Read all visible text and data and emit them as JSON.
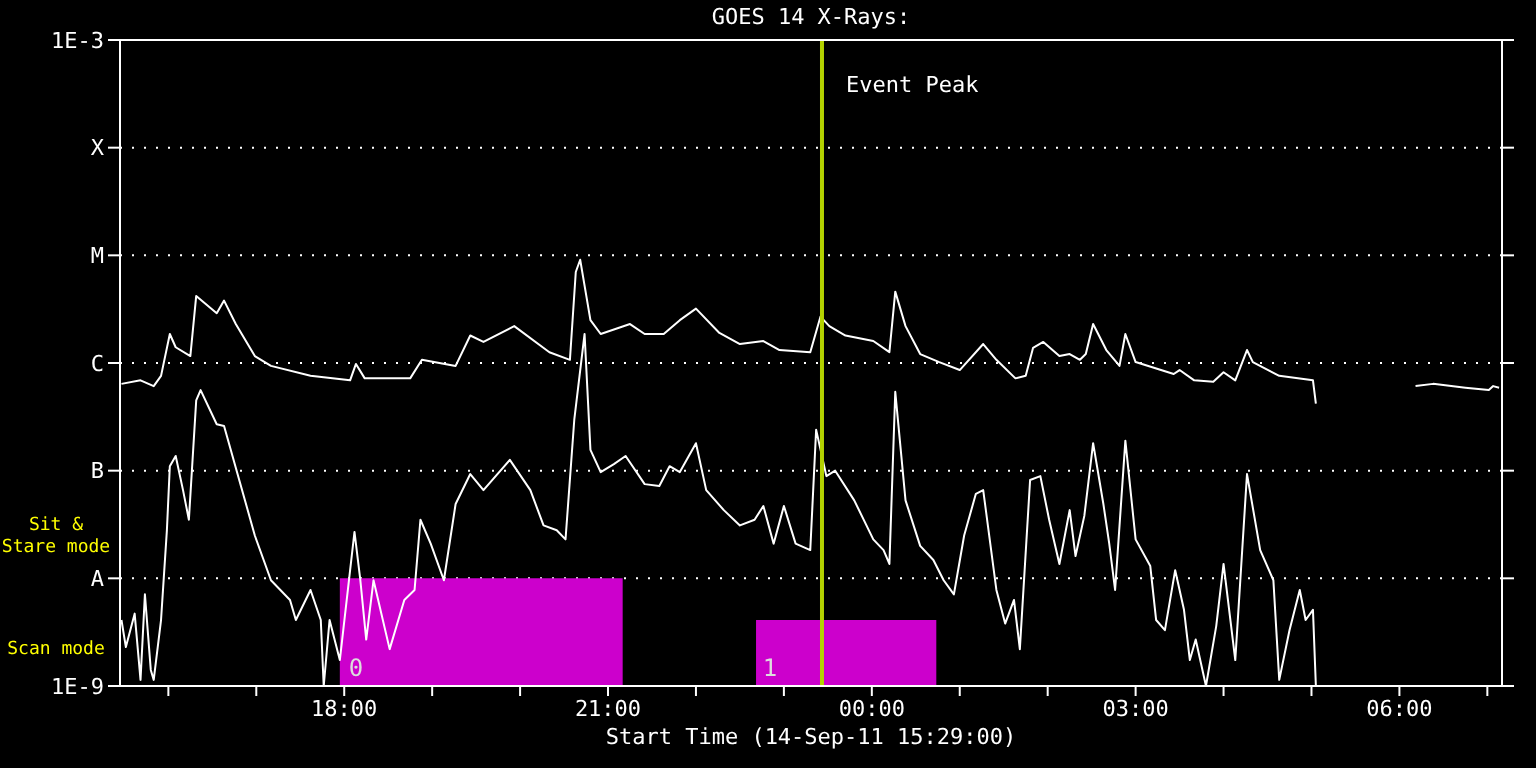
{
  "chart_data": {
    "type": "line",
    "title": "GOES 14 X-Rays:",
    "xlabel": "Start Time (14-Sep-11 15:29:00)",
    "log": "y",
    "grid": "y",
    "xlim": [
      "--09-14T15:27",
      "--09-15T07:10"
    ],
    "xticks": [
      {
        "value": "--09-14T16:00",
        "label": null
      },
      {
        "value": "--09-14T17:00",
        "label": null
      },
      {
        "value": "--09-14T18:00",
        "label": "18:00"
      },
      {
        "value": "--09-14T19:00",
        "label": null
      },
      {
        "value": "--09-14T20:00",
        "label": null
      },
      {
        "value": "--09-14T21:00",
        "label": "21:00"
      },
      {
        "value": "--09-14T22:00",
        "label": null
      },
      {
        "value": "--09-14T23:00",
        "label": null
      },
      {
        "value": "--09-15T00:00",
        "label": "00:00"
      },
      {
        "value": "--09-15T01:00",
        "label": null
      },
      {
        "value": "--09-15T02:00",
        "label": null
      },
      {
        "value": "--09-15T03:00",
        "label": "03:00"
      },
      {
        "value": "--09-15T04:00",
        "label": null
      },
      {
        "value": "--09-15T05:00",
        "label": null
      },
      {
        "value": "--09-15T06:00",
        "label": "06:00"
      },
      {
        "value": "--09-15T07:00",
        "label": null
      }
    ],
    "ylim": [
      1e-09,
      0.001
    ],
    "yticks": [
      {
        "value": 1e-09,
        "label": "1E-9"
      },
      {
        "value": 1e-08,
        "label": "A"
      },
      {
        "value": 1e-07,
        "label": "B"
      },
      {
        "value": 1e-06,
        "label": "C"
      },
      {
        "value": 1e-05,
        "label": "M"
      },
      {
        "value": 0.0001,
        "label": "X"
      },
      {
        "value": 0.001,
        "label": "1E-3"
      }
    ],
    "series": [
      {
        "type": "area",
        "color": "#cc00cc",
        "x": [
          "--09-14T17:57",
          "--09-14T21:10"
        ],
        "values": [
          1e-08,
          1e-08
        ]
      },
      {
        "type": "area",
        "color": "#cc00cc",
        "x": [
          "--09-14T22:41",
          "--09-15T00:44"
        ],
        "values": [
          4.1e-09,
          4.1e-09
        ]
      },
      {
        "color": "#ffffff",
        "x": [
          "--09-14T15:28",
          "--09-14T15:41",
          "--09-14T15:50",
          "--09-14T15:55",
          "--09-14T16:01",
          "--09-14T16:05",
          "--09-14T16:15",
          "--09-14T16:19",
          "--09-14T16:33",
          "--09-14T16:38",
          "--09-14T16:46",
          "--09-14T16:59",
          "--09-14T17:10",
          "--09-14T17:37",
          "--09-14T18:04",
          "--09-14T18:08",
          "--09-14T18:14",
          "--09-14T18:45",
          "--09-14T18:53",
          "--09-14T19:16",
          "--09-14T19:26",
          "--09-14T19:35",
          "--09-14T19:56",
          "--09-14T20:20",
          "--09-14T20:34",
          "--09-14T20:38",
          "--09-14T20:41",
          "--09-14T20:48",
          "--09-14T20:55",
          "--09-14T21:15",
          "--09-14T21:25",
          "--09-14T21:38",
          "--09-14T21:49",
          "--09-14T22:00",
          "--09-14T22:16",
          "--09-14T22:30",
          "--09-14T22:46",
          "--09-14T22:57",
          "--09-14T23:18",
          "--09-14T23:25",
          "--09-14T23:31",
          "--09-14T23:42",
          "--09-15T00:01",
          "--09-15T00:12",
          "--09-15T00:16",
          "--09-15T00:23",
          "--09-15T00:33",
          "--09-15T00:46",
          "--09-15T01:00",
          "--09-15T01:16",
          "--09-15T01:25",
          "--09-15T01:38",
          "--09-15T01:45",
          "--09-15T01:50",
          "--09-15T01:57",
          "--09-15T02:08",
          "--09-15T02:15",
          "--09-15T02:22",
          "--09-15T02:26",
          "--09-15T02:31",
          "--09-15T02:40",
          "--09-15T02:49",
          "--09-15T02:53",
          "--09-15T03:00",
          "--09-15T03:26",
          "--09-15T03:30",
          "--09-15T03:40",
          "--09-15T03:53",
          "--09-15T04:00",
          "--09-15T04:08",
          "--09-15T04:16",
          "--09-15T04:20",
          "--09-15T04:38",
          "--09-15T05:01",
          "--09-15T05:03",
          "--09-15T05:36",
          "--09-15T06:11",
          "--09-15T06:23",
          "--09-15T06:45",
          "--09-15T07:01",
          "--09-15T07:04",
          "--09-15T07:08"
        ],
        "values": [
          6.4e-07,
          6.9e-07,
          6.1e-07,
          7.6e-07,
          1.86e-06,
          1.4e-06,
          1.16e-06,
          4.2e-06,
          2.9e-06,
          3.8e-06,
          2.3e-06,
          1.16e-06,
          9.4e-07,
          7.6e-07,
          6.9e-07,
          9.8e-07,
          7.2e-07,
          7.2e-07,
          1.07e-06,
          9.4e-07,
          1.8e-06,
          1.57e-06,
          2.2e-06,
          1.26e-06,
          1.07e-06,
          7e-06,
          9.1e-06,
          2.5e-06,
          1.86e-06,
          2.3e-06,
          1.86e-06,
          1.86e-06,
          2.5e-06,
          3.2e-06,
          1.9e-06,
          1.5e-06,
          1.6e-06,
          1.32e-06,
          1.26e-06,
          2.7e-06,
          2.2e-06,
          1.8e-06,
          1.6e-06,
          1.26e-06,
          4.6e-06,
          2.2e-06,
          1.21e-06,
          1.02e-06,
          8.6e-07,
          1.5e-06,
          1.07e-06,
          7.2e-07,
          7.6e-07,
          1.38e-06,
          1.57e-06,
          1.16e-06,
          1.21e-06,
          1.07e-06,
          1.21e-06,
          2.3e-06,
          1.32e-06,
          9.4e-07,
          1.86e-06,
          1.02e-06,
          7.9e-07,
          8.6e-07,
          6.9e-07,
          6.7e-07,
          8.2e-07,
          6.9e-07,
          1.32e-06,
          1.02e-06,
          7.6e-07,
          6.9e-07,
          4.2e-07,
          null,
          6.1e-07,
          6.4e-07,
          5.9e-07,
          5.6e-07,
          6.1e-07,
          5.9e-07
        ]
      },
      {
        "color": "#ffffff",
        "x": [
          "--09-14T15:28",
          "--09-14T15:31",
          "--09-14T15:37",
          "--09-14T15:41",
          "--09-14T15:44",
          "--09-14T15:48",
          "--09-14T15:50",
          "--09-14T15:55",
          "--09-14T15:59",
          "--09-14T16:01",
          "--09-14T16:05",
          "--09-14T16:10",
          "--09-14T16:14",
          "--09-14T16:19",
          "--09-14T16:22",
          "--09-14T16:33",
          "--09-14T16:38",
          "--09-14T16:59",
          "--09-14T17:10",
          "--09-14T17:23",
          "--09-14T17:27",
          "--09-14T17:37",
          "--09-14T17:44",
          "--09-14T17:46",
          "--09-14T17:50",
          "--09-14T17:57",
          "--09-14T18:07",
          "--09-14T18:11",
          "--09-14T18:15",
          "--09-14T18:20",
          "--09-14T18:31",
          "--09-14T18:41",
          "--09-14T18:48",
          "--09-14T18:52",
          "--09-14T18:59",
          "--09-14T19:08",
          "--09-14T19:16",
          "--09-14T19:26",
          "--09-14T19:35",
          "--09-14T19:53",
          "--09-14T20:07",
          "--09-14T20:16",
          "--09-14T20:25",
          "--09-14T20:31",
          "--09-14T20:37",
          "--09-14T20:44",
          "--09-14T20:48",
          "--09-14T20:55",
          "--09-14T21:04",
          "--09-14T21:12",
          "--09-14T21:25",
          "--09-14T21:35",
          "--09-14T21:42",
          "--09-14T21:49",
          "--09-14T22:00",
          "--09-14T22:07",
          "--09-14T22:19",
          "--09-14T22:30",
          "--09-14T22:40",
          "--09-14T22:46",
          "--09-14T22:53",
          "--09-14T23:00",
          "--09-14T23:08",
          "--09-14T23:18",
          "--09-14T23:22",
          "--09-14T23:29",
          "--09-14T23:35",
          "--09-14T23:48",
          "--09-15T00:01",
          "--09-15T00:08",
          "--09-15T00:12",
          "--09-15T00:16",
          "--09-15T00:23",
          "--09-15T00:33",
          "--09-15T00:42",
          "--09-15T00:49",
          "--09-15T00:56",
          "--09-15T01:03",
          "--09-15T01:11",
          "--09-15T01:16",
          "--09-15T01:25",
          "--09-15T01:31",
          "--09-15T01:37",
          "--09-15T01:41",
          "--09-15T01:48",
          "--09-15T01:55",
          "--09-15T02:01",
          "--09-15T02:08",
          "--09-15T02:15",
          "--09-15T02:19",
          "--09-15T02:25",
          "--09-15T02:31",
          "--09-15T02:38",
          "--09-15T02:42",
          "--09-15T02:46",
          "--09-15T02:53",
          "--09-15T03:00",
          "--09-15T03:10",
          "--09-15T03:14",
          "--09-15T03:20",
          "--09-15T03:27",
          "--09-15T03:33",
          "--09-15T03:37",
          "--09-15T03:41",
          "--09-15T03:48",
          "--09-15T03:55",
          "--09-15T04:00",
          "--09-15T04:08",
          "--09-15T04:16",
          "--09-15T04:25",
          "--09-15T04:34",
          "--09-15T04:38",
          "--09-15T04:45",
          "--09-15T04:52",
          "--09-15T04:56",
          "--09-15T05:01",
          "--09-15T05:03"
        ],
        "values": [
          4.1e-09,
          2.3e-09,
          4.7e-09,
          1.14e-09,
          7.1e-09,
          1.41e-09,
          1.14e-09,
          4.1e-09,
          2.8e-08,
          1.1e-07,
          1.37e-07,
          6.6e-08,
          3.5e-08,
          4.5e-07,
          5.6e-07,
          2.7e-07,
          2.6e-07,
          2.5e-08,
          9.6e-09,
          6.3e-09,
          4.1e-09,
          7.8e-09,
          4.1e-09,
          1e-09,
          4.1e-09,
          1.74e-09,
          2.7e-08,
          9.6e-09,
          2.7e-09,
          9.6e-09,
          2.2e-09,
          6.3e-09,
          7.8e-09,
          3.5e-08,
          2.1e-08,
          9.6e-09,
          4.9e-08,
          9.3e-08,
          6.6e-08,
          1.26e-07,
          6.6e-08,
          3.1e-08,
          2.8e-08,
          2.3e-08,
          3e-07,
          1.86e-06,
          1.56e-07,
          9.7e-08,
          1.15e-07,
          1.37e-07,
          7.5e-08,
          7.2e-08,
          1.1e-07,
          9.7e-08,
          1.8e-07,
          6.6e-08,
          4.3e-08,
          3.1e-08,
          3.5e-08,
          4.7e-08,
          2.1e-08,
          4.7e-08,
          2.1e-08,
          1.83e-08,
          2.4e-07,
          8.9e-08,
          1e-07,
          5.3e-08,
          2.3e-08,
          1.83e-08,
          1.36e-08,
          5.4e-07,
          5.3e-08,
          2e-08,
          1.48e-08,
          9.6e-09,
          7.1e-09,
          2.5e-08,
          6.1e-08,
          6.6e-08,
          7.8e-09,
          3.8e-09,
          6.3e-09,
          2.2e-09,
          8.2e-08,
          8.9e-08,
          3.5e-08,
          1.36e-08,
          4.3e-08,
          1.61e-08,
          3.8e-08,
          1.8e-07,
          4.9e-08,
          2.1e-08,
          7.8e-09,
          1.9e-07,
          2.3e-08,
          1.3e-08,
          4.1e-09,
          3.3e-09,
          1.19e-08,
          5.1e-09,
          1.74e-09,
          2.7e-09,
          1e-09,
          3.6e-09,
          1.36e-08,
          1.74e-09,
          9.3e-08,
          1.83e-08,
          9.6e-09,
          1.14e-09,
          3.3e-09,
          7.8e-09,
          4.1e-09,
          5.1e-09,
          1e-09
        ]
      }
    ],
    "ref_lines": [
      {
        "axis": "x",
        "value": "--09-14T23:26",
        "label": "Event Peak",
        "color": "#b4d200"
      }
    ],
    "annotations": [
      "Sit & Stare mode",
      "Scan mode",
      "0",
      "1"
    ]
  }
}
